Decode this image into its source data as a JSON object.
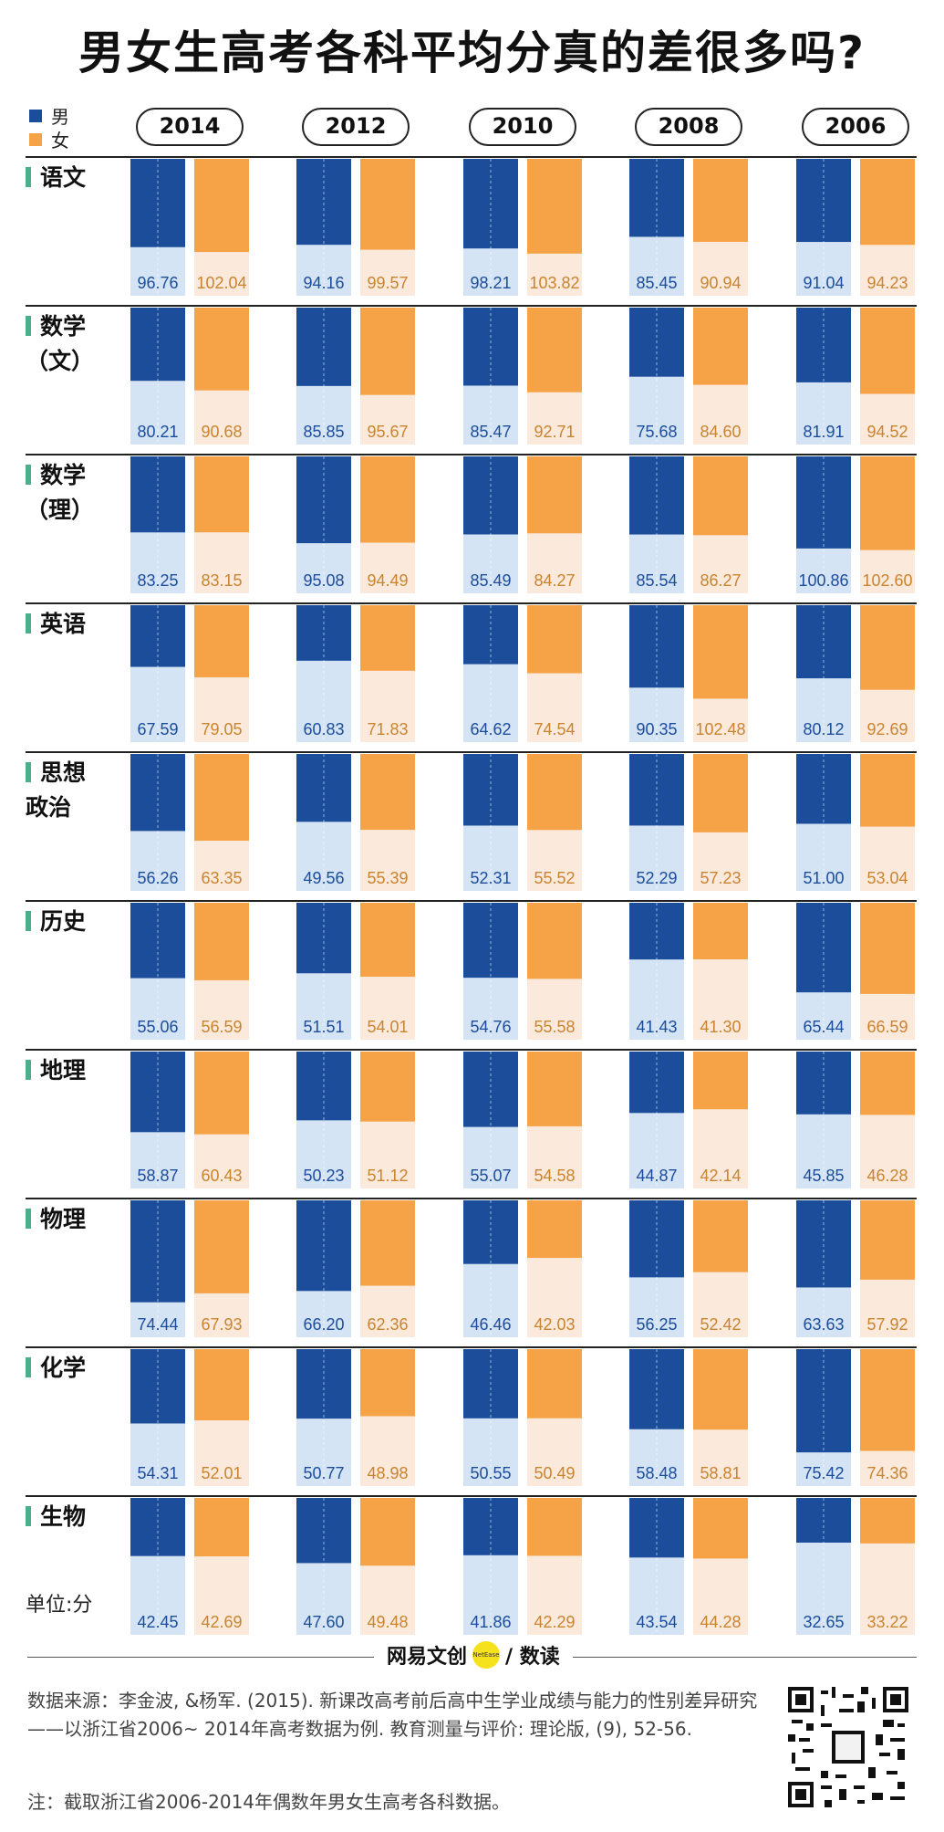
{
  "title": "男女生高考各科平均分真的差很多吗?",
  "legend": [
    {
      "label": "男",
      "color": "#1b4d9b"
    },
    {
      "label": "女",
      "color": "#f5a346"
    }
  ],
  "unit_label": "单位:分",
  "colors": {
    "male_dark": "#1b4d9b",
    "male_light": "#d5e4f4",
    "female_dark": "#f5a346",
    "female_light": "#fbe9db",
    "male_text": "#1b4d9b",
    "female_text": "#c98430",
    "separator": "#222222",
    "subject_marker": "#4cae8a"
  },
  "chart_data": {
    "type": "bar",
    "title": "男女生高考各科平均分真的差很多吗?",
    "years": [
      "2014",
      "2012",
      "2010",
      "2008",
      "2006"
    ],
    "series_names": [
      "男",
      "女"
    ],
    "subjects": [
      {
        "name": "语文",
        "male": [
          96.76,
          94.16,
          98.21,
          85.45,
          91.04
        ],
        "female": [
          102.04,
          99.57,
          103.82,
          90.94,
          94.23
        ]
      },
      {
        "name": "数学\n（文）",
        "male": [
          80.21,
          85.85,
          85.47,
          75.68,
          81.91
        ],
        "female": [
          90.68,
          95.67,
          92.71,
          84.6,
          94.52
        ]
      },
      {
        "name": "数学\n（理）",
        "male": [
          83.25,
          95.08,
          85.49,
          85.54,
          100.86
        ],
        "female": [
          83.15,
          94.49,
          84.27,
          86.27,
          102.6
        ]
      },
      {
        "name": "英语",
        "male": [
          67.59,
          60.83,
          64.62,
          90.35,
          80.12
        ],
        "female": [
          79.05,
          71.83,
          74.54,
          102.48,
          92.69
        ]
      },
      {
        "name": "思想\n政治",
        "male": [
          56.26,
          49.56,
          52.31,
          52.29,
          51.0
        ],
        "female": [
          63.35,
          55.39,
          55.52,
          57.23,
          53.04
        ]
      },
      {
        "name": "历史",
        "male": [
          55.06,
          51.51,
          54.76,
          41.43,
          65.44
        ],
        "female": [
          56.59,
          54.01,
          55.58,
          41.3,
          66.59
        ]
      },
      {
        "name": "地理",
        "male": [
          58.87,
          50.23,
          55.07,
          44.87,
          45.85
        ],
        "female": [
          60.43,
          51.12,
          54.58,
          42.14,
          46.28
        ]
      },
      {
        "name": "物理",
        "male": [
          74.44,
          66.2,
          46.46,
          56.25,
          63.63
        ],
        "female": [
          67.93,
          62.36,
          42.03,
          52.42,
          57.92
        ]
      },
      {
        "name": "化学",
        "male": [
          54.31,
          50.77,
          50.55,
          58.48,
          75.42
        ],
        "female": [
          52.01,
          48.98,
          50.49,
          58.81,
          74.36
        ]
      },
      {
        "name": "生物",
        "male": [
          42.45,
          47.6,
          41.86,
          43.54,
          32.65
        ],
        "female": [
          42.69,
          49.48,
          42.29,
          44.28,
          33.22
        ]
      }
    ],
    "full_marks": [
      150,
      150,
      150,
      150,
      100,
      100,
      100,
      100,
      100,
      100
    ],
    "value_format": "2 decimals"
  },
  "footer": {
    "brand_left": "网易文创",
    "brand_dot": "NetEase",
    "brand_right": "/ 数读",
    "source": "数据来源：李金波, &杨军. (2015). 新课改高考前后高中生学业成绩与能力的性别差异研究——以浙江省2006~ 2014年高考数据为例. 教育测量与评价: 理论版, (9), 52-56.",
    "note": "注：截取浙江省2006-2014年偶数年男女生高考各科数据。"
  }
}
